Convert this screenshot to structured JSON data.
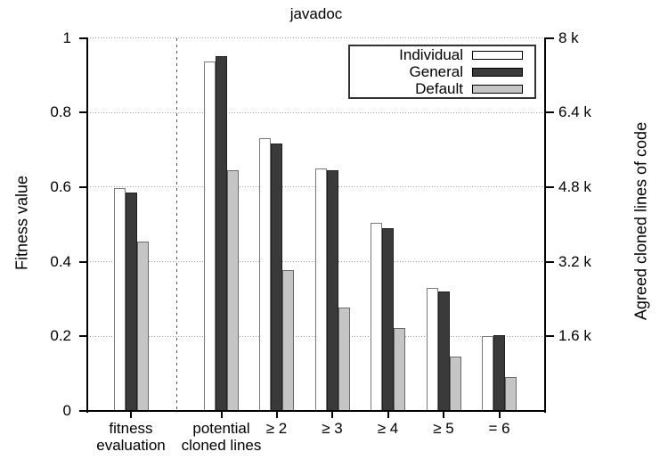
{
  "chart_data": {
    "type": "bar",
    "title": "javadoc",
    "ylabel_left": "Fitness value",
    "ylabel_right": "Agreed cloned lines of code",
    "ylim_left": [
      0,
      1
    ],
    "ylim_right_lines_of_code": [
      0,
      8000
    ],
    "yticks_left_labels": [
      "0",
      "0.2",
      "0.4",
      "0.6",
      "0.8",
      "1"
    ],
    "yticks_left_values": [
      0,
      0.2,
      0.4,
      0.6,
      0.8,
      1
    ],
    "yticks_right_labels": [
      "1.6 k",
      "3.2 k",
      "4.8 k",
      "6.4 k",
      "8 k"
    ],
    "yticks_right_values": [
      0.2,
      0.4,
      0.6,
      0.8,
      1
    ],
    "categories": [
      "fitness\nevaluation",
      "potential\ncloned lines",
      "≥ 2",
      "≥ 3",
      "≥ 4",
      "≥ 5",
      "= 6"
    ],
    "series": [
      {
        "name": "Individual",
        "fill": "#ffffff",
        "border": "#7a7a7a",
        "values": [
          0.597,
          0.937,
          0.73,
          0.649,
          0.503,
          0.33,
          0.201
        ]
      },
      {
        "name": "General",
        "fill": "#3a3a3a",
        "border": "#1f1f1f",
        "values": [
          0.586,
          0.951,
          0.718,
          0.645,
          0.49,
          0.321,
          0.203
        ]
      },
      {
        "name": "Default",
        "fill": "#c5c5c5",
        "border": "#6b6b6b",
        "values": [
          0.454,
          0.645,
          0.377,
          0.278,
          0.222,
          0.146,
          0.09
        ]
      }
    ],
    "legend": {
      "position": "top-right",
      "entries": [
        "Individual",
        "General",
        "Default"
      ]
    },
    "grid": {
      "horizontal": "dotted",
      "vertical_separator_after_category_index": 0
    },
    "colors": {
      "axis": "#000000",
      "grid": "#999999",
      "separator": "#555555",
      "background": "#ffffff",
      "text": "#000000"
    }
  }
}
